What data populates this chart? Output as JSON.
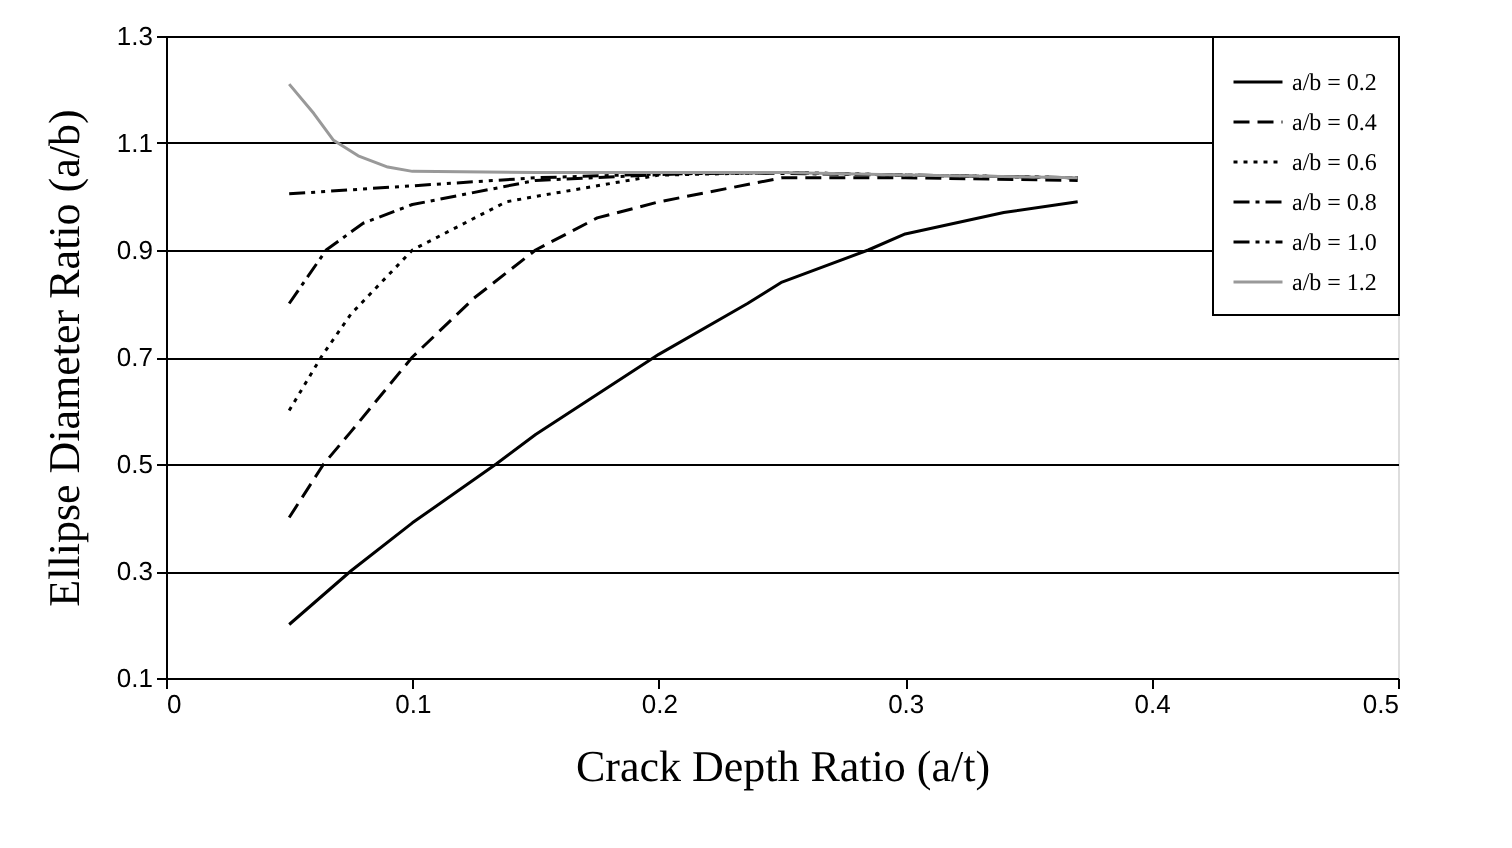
{
  "chart_data": {
    "type": "line",
    "xlabel": "Crack Depth Ratio (a/t)",
    "ylabel": "Ellipse Diameter Ratio (a/b)",
    "xlim": [
      0,
      0.5
    ],
    "xticks": [
      0,
      0.1,
      0.2,
      0.3,
      0.4,
      0.5
    ],
    "ylim": [
      0.1,
      1.3
    ],
    "yticks": [
      0.1,
      0.3,
      0.5,
      0.7,
      0.9,
      1.1,
      1.3
    ],
    "grid": "y",
    "legend": "top right",
    "marker": "none",
    "series": [
      {
        "name": "a/b = 0.2",
        "color": "#000000",
        "line_style": "solid",
        "x": [
          0.05,
          0.075,
          0.1,
          0.134,
          0.15,
          0.2,
          0.236,
          0.25,
          0.285,
          0.3,
          0.34,
          0.37
        ],
        "values": [
          0.2,
          0.3,
          0.39,
          0.5,
          0.555,
          0.705,
          0.8,
          0.84,
          0.9,
          0.93,
          0.97,
          0.99
        ]
      },
      {
        "name": "a/b = 0.4",
        "color": "#000000",
        "line_style": "dashed",
        "x": [
          0.05,
          0.064,
          0.075,
          0.1,
          0.125,
          0.15,
          0.175,
          0.2,
          0.25,
          0.3,
          0.37
        ],
        "values": [
          0.4,
          0.5,
          0.56,
          0.7,
          0.81,
          0.9,
          0.96,
          0.99,
          1.035,
          1.035,
          1.03
        ]
      },
      {
        "name": "a/b = 0.6",
        "color": "#000000",
        "line_style": "dotted",
        "x": [
          0.05,
          0.063,
          0.075,
          0.1,
          0.138,
          0.15,
          0.2,
          0.25,
          0.3,
          0.37
        ],
        "values": [
          0.6,
          0.7,
          0.78,
          0.9,
          0.99,
          1.0,
          1.04,
          1.045,
          1.04,
          1.035
        ]
      },
      {
        "name": "a/b = 0.8",
        "color": "#000000",
        "line_style": "dashdot",
        "x": [
          0.05,
          0.065,
          0.08,
          0.1,
          0.15,
          0.22,
          0.3,
          0.37
        ],
        "values": [
          0.8,
          0.9,
          0.95,
          0.985,
          1.03,
          1.045,
          1.04,
          1.035
        ]
      },
      {
        "name": "a/b = 1.0",
        "color": "#000000",
        "line_style": "dashdotdot",
        "x": [
          0.05,
          0.1,
          0.15,
          0.2,
          0.25,
          0.3,
          0.37
        ],
        "values": [
          1.005,
          1.02,
          1.035,
          1.042,
          1.045,
          1.04,
          1.035
        ]
      },
      {
        "name": "a/b = 1.2",
        "color": "#999999",
        "line_style": "solid",
        "x": [
          0.05,
          0.06,
          0.068,
          0.078,
          0.09,
          0.1,
          0.15,
          0.25,
          0.3,
          0.37
        ],
        "values": [
          1.21,
          1.155,
          1.105,
          1.076,
          1.055,
          1.047,
          1.045,
          1.045,
          1.04,
          1.035
        ]
      }
    ]
  }
}
